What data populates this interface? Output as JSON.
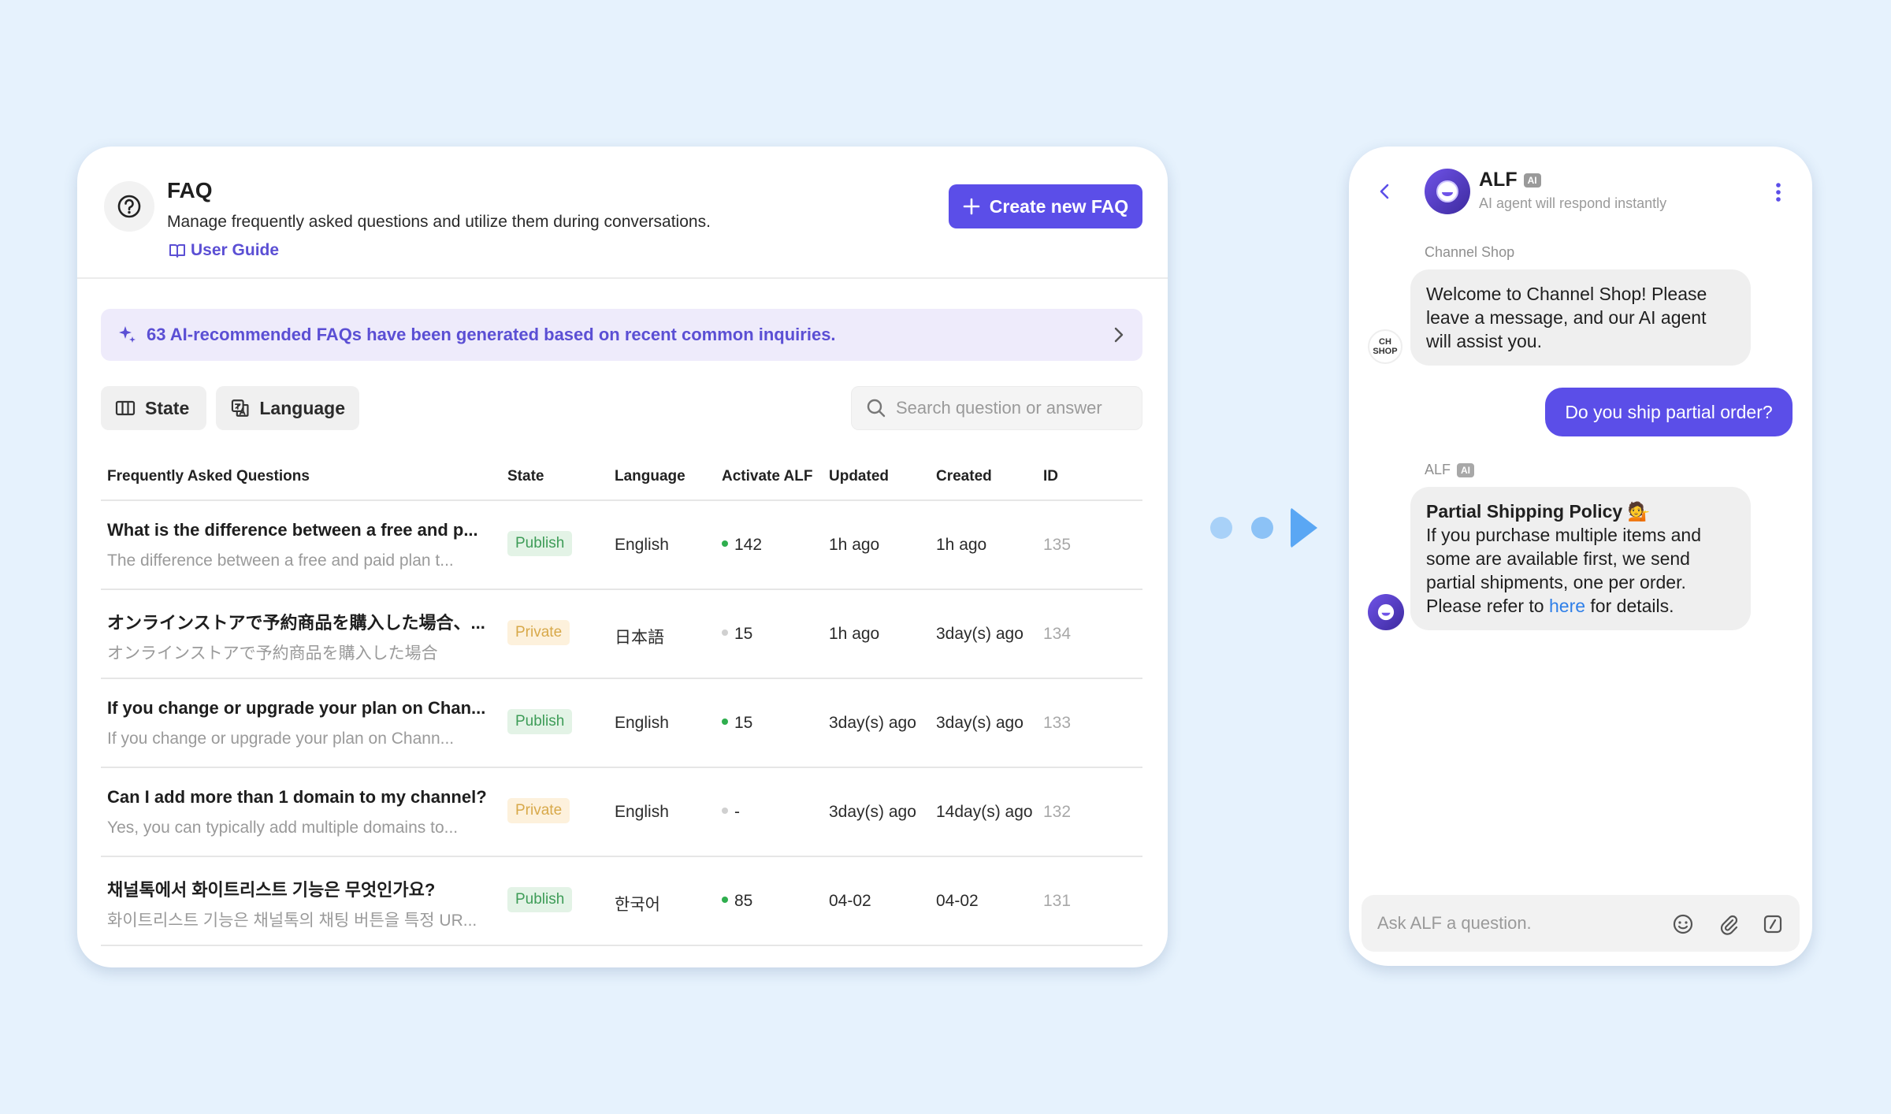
{
  "faq": {
    "title": "FAQ",
    "description": "Manage frequently asked questions and utilize them during conversations.",
    "user_guide": "User Guide",
    "create_button": "Create new FAQ",
    "ai_banner": "63 AI-recommended FAQs have been generated based on recent common inquiries.",
    "filters": {
      "state": "State",
      "language": "Language"
    },
    "search_placeholder": "Search question or answer",
    "columns": [
      "Frequently Asked Questions",
      "State",
      "Language",
      "Activate ALF",
      "Updated",
      "Created",
      "ID"
    ],
    "rows": [
      {
        "question": "What is the difference between a free and p...",
        "answer": "The difference between a free and paid plan t...",
        "state": "Publish",
        "language": "English",
        "alf": "142",
        "updated": "1h ago",
        "created": "1h ago",
        "id": "135"
      },
      {
        "question": "オンラインストアで予約商品を購入した場合、...",
        "answer": "オンラインストアで予約商品を購入した場合",
        "state": "Private",
        "language": "日本語",
        "alf": "15",
        "updated": "1h ago",
        "created": "3day(s) ago",
        "id": "134"
      },
      {
        "question": "If you change or upgrade your plan on Chan...",
        "answer": "If you change or upgrade your plan on Chann...",
        "state": "Publish",
        "language": "English",
        "alf": "15",
        "updated": "3day(s) ago",
        "created": "3day(s) ago",
        "id": "133"
      },
      {
        "question": "Can I add more than 1 domain to my channel?",
        "answer": "Yes, you can typically add multiple domains to...",
        "state": "Private",
        "language": "English",
        "alf": "-",
        "updated": "3day(s) ago",
        "created": "14day(s) ago",
        "id": "132"
      },
      {
        "question": "채널톡에서 화이트리스트 기능은 무엇인가요?",
        "answer": "화이트리스트 기능은 채널톡의 채팅 버튼을 특정 UR...",
        "state": "Publish",
        "language": "한국어",
        "alf": "85",
        "updated": "04-02",
        "created": "04-02",
        "id": "131"
      }
    ]
  },
  "chat": {
    "name": "ALF",
    "ai_tag": "AI",
    "subtitle": "AI agent will respond instantly",
    "shop_label": "Channel Shop",
    "shop_avatar": [
      "CH",
      "SHOP"
    ],
    "welcome": "Welcome to Channel Shop! Please leave a message, and our AI agent will assist you.",
    "user_message": "Do you ship partial order?",
    "alf_label": "ALF",
    "reply_title": "Partial Shipping Policy 💁",
    "reply_body": "If you purchase multiple items and some are available first, we send partial shipments, one per order. Please refer to",
    "reply_link": "here",
    "reply_tail": "for details.",
    "input_placeholder": "Ask ALF a question."
  },
  "colors": {
    "accent": "#5b4ee8",
    "publish": "#3d9c57",
    "private": "#d8a94a",
    "active_dot": "#2fae4e",
    "inactive_dot": "#d0d0d0"
  }
}
